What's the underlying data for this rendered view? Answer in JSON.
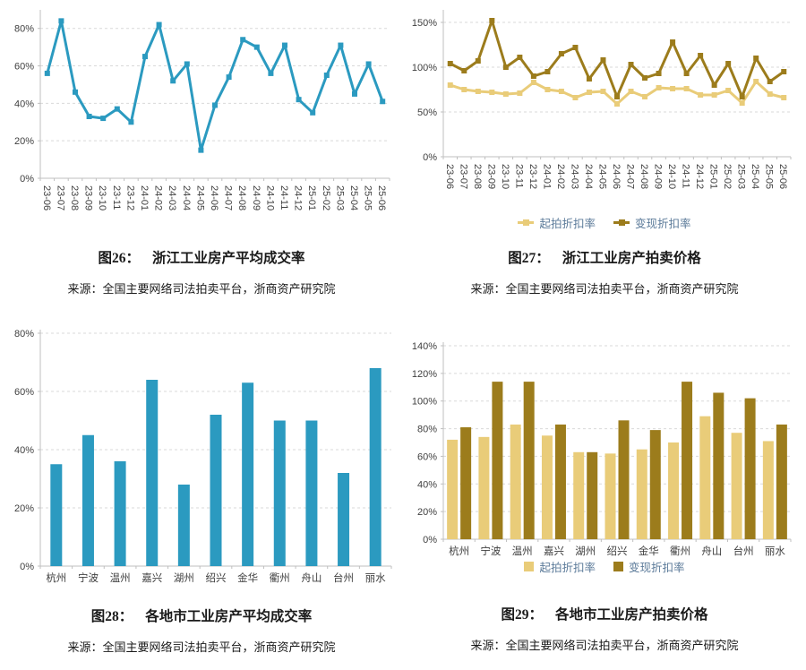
{
  "colors": {
    "line_blue": "#2B9AC0",
    "gold_light": "#E9CC79",
    "gold_dark": "#9C7C1C",
    "legend_text": "#5B7A99",
    "axis_text": "#3F3F3F",
    "gridline": "#D9D9D9",
    "axis_line": "#BFBFBF",
    "caption_text": "#1A1A1A"
  },
  "chart_data": [
    {
      "id": "fig26",
      "type": "line",
      "caption_label": "图26：",
      "caption_title": "浙江工业房产平均成交率",
      "source": "来源：全国主要网络司法拍卖平台，浙商资产研究院",
      "categories": [
        "23-06",
        "23-07",
        "23-08",
        "23-09",
        "23-10",
        "23-11",
        "23-12",
        "24-01",
        "24-02",
        "24-03",
        "24-04",
        "24-05",
        "24-06",
        "24-07",
        "24-08",
        "24-09",
        "24-10",
        "24-11",
        "24-12",
        "25-01",
        "25-02",
        "25-03",
        "25-04",
        "25-05",
        "25-06"
      ],
      "series": [
        {
          "color_key": "line_blue",
          "values": [
            56,
            84,
            46,
            33,
            32,
            37,
            30,
            65,
            82,
            52,
            61,
            15,
            39,
            54,
            74,
            70,
            56,
            71,
            42,
            35,
            55,
            71,
            45,
            61,
            41
          ]
        }
      ],
      "xlabel": "",
      "ylabel": "",
      "ylim": [
        0,
        88
      ],
      "yticks": [
        0,
        20,
        40,
        60,
        80
      ],
      "yticklabels": [
        "0%",
        "20%",
        "40%",
        "60%",
        "80%"
      ],
      "grid": "dashed-horizontal",
      "legend": "none",
      "x_label_rotation": 90
    },
    {
      "id": "fig27",
      "type": "line",
      "caption_label": "图27：",
      "caption_title": "浙江工业房产拍卖价格",
      "source": "来源：全国主要网络司法拍卖平台，浙商资产研究院",
      "categories": [
        "23-06",
        "23-07",
        "23-08",
        "23-09",
        "23-10",
        "23-11",
        "23-12",
        "24-01",
        "24-02",
        "24-03",
        "24-04",
        "24-05",
        "24-06",
        "24-07",
        "24-08",
        "24-09",
        "24-10",
        "24-11",
        "24-12",
        "25-01",
        "25-02",
        "25-03",
        "25-04",
        "25-05",
        "25-06"
      ],
      "series": [
        {
          "name": "起拍折扣率",
          "color_key": "gold_light",
          "values": [
            80,
            75,
            73,
            72,
            70,
            71,
            83,
            75,
            73,
            66,
            72,
            73,
            59,
            73,
            67,
            77,
            76,
            76,
            69,
            69,
            74,
            60,
            84,
            70,
            66
          ]
        },
        {
          "name": "变现折扣率",
          "color_key": "gold_dark",
          "values": [
            104,
            96,
            107,
            152,
            100,
            111,
            90,
            95,
            115,
            122,
            87,
            108,
            67,
            103,
            88,
            93,
            128,
            93,
            113,
            80,
            104,
            67,
            110,
            84,
            95
          ]
        }
      ],
      "xlabel": "",
      "ylabel": "",
      "ylim": [
        0,
        160
      ],
      "yticks": [
        0,
        50,
        100,
        150
      ],
      "yticklabels": [
        "0%",
        "50%",
        "100%",
        "150%"
      ],
      "grid": "dashed-horizontal",
      "legend": "bottom",
      "x_label_rotation": 90
    },
    {
      "id": "fig28",
      "type": "bar",
      "caption_label": "图28：",
      "caption_title": "各地市工业房产平均成交率",
      "source": "来源：全国主要网络司法拍卖平台，浙商资产研究院",
      "categories": [
        "杭州",
        "宁波",
        "温州",
        "嘉兴",
        "湖州",
        "绍兴",
        "金华",
        "衢州",
        "舟山",
        "台州",
        "丽水"
      ],
      "series": [
        {
          "color_key": "line_blue",
          "values": [
            35,
            45,
            36,
            64,
            28,
            52,
            63,
            50,
            50,
            32,
            68
          ]
        }
      ],
      "xlabel": "",
      "ylabel": "",
      "ylim": [
        0,
        80
      ],
      "yticks": [
        0,
        20,
        40,
        60,
        80
      ],
      "yticklabels": [
        "0%",
        "20%",
        "40%",
        "60%",
        "80%"
      ],
      "grid": "dashed-horizontal",
      "legend": "none",
      "x_label_rotation": 0
    },
    {
      "id": "fig29",
      "type": "bar",
      "caption_label": "图29：",
      "caption_title": "各地市工业房产拍卖价格",
      "source": "来源：全国主要网络司法拍卖平台，浙商资产研究院",
      "categories": [
        "杭州",
        "宁波",
        "温州",
        "嘉兴",
        "湖州",
        "绍兴",
        "金华",
        "衢州",
        "舟山",
        "台州",
        "丽水"
      ],
      "series": [
        {
          "name": "起拍折扣率",
          "color_key": "gold_light",
          "values": [
            72,
            74,
            83,
            75,
            63,
            62,
            65,
            70,
            89,
            77,
            71
          ]
        },
        {
          "name": "变现折扣率",
          "color_key": "gold_dark",
          "values": [
            81,
            114,
            114,
            83,
            63,
            86,
            79,
            114,
            106,
            102,
            83
          ]
        }
      ],
      "xlabel": "",
      "ylabel": "",
      "ylim": [
        0,
        140
      ],
      "yticks": [
        0,
        20,
        40,
        60,
        80,
        100,
        120,
        140
      ],
      "yticklabels": [
        "0%",
        "20%",
        "40%",
        "60%",
        "80%",
        "100%",
        "120%",
        "140%"
      ],
      "grid": "dashed-horizontal",
      "legend": "bottom",
      "x_label_rotation": 0
    }
  ]
}
